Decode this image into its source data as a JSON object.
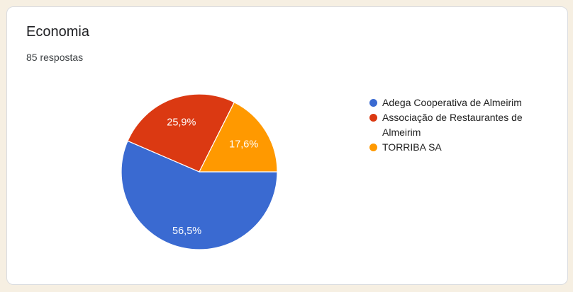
{
  "card": {
    "title": "Economia",
    "response_count": "85 respostas"
  },
  "chart_data": {
    "type": "pie",
    "title": "Economia",
    "total_responses": 85,
    "unit": "%",
    "legend_position": "right",
    "start_angle": "3-oclock, clockwise",
    "slices": [
      {
        "legend": "Adega Cooperativa de Almeirim",
        "value": 56.5,
        "label": "56,5%",
        "color": "#3a6ad1"
      },
      {
        "legend": "Associação de Restaurantes de Almeirim",
        "value": 25.9,
        "label": "25,9%",
        "color": "#db3912"
      },
      {
        "legend": "TORRIBA SA",
        "value": 17.6,
        "label": "17,6%",
        "color": "#ff9900"
      }
    ]
  },
  "colors": {
    "page_background": "#f6efe2",
    "card_background": "#ffffff",
    "card_border": "#dadce0",
    "title_text": "#202124",
    "subtitle_text": "#3c4043",
    "slice_label_text": "#ffffff"
  }
}
